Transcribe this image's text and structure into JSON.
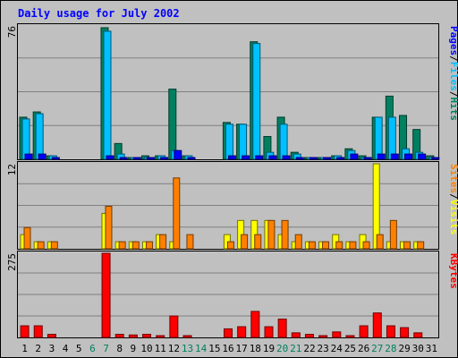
{
  "chart_data": {
    "type": "bar",
    "title": "Daily usage for July 2002",
    "x": [
      1,
      2,
      3,
      4,
      5,
      6,
      7,
      8,
      9,
      10,
      11,
      12,
      13,
      14,
      15,
      16,
      17,
      18,
      19,
      20,
      21,
      22,
      23,
      24,
      25,
      26,
      27,
      28,
      29,
      30,
      31
    ],
    "weekend_days": [
      6,
      7,
      13,
      14,
      20,
      21,
      27,
      28
    ],
    "panels": [
      {
        "ymax_label": "76",
        "ylim": [
          0,
          76
        ],
        "legend": [
          "Pages",
          "/",
          "Files",
          "/",
          "Hits"
        ],
        "series": [
          {
            "name": "Hits",
            "color": "#008060",
            "values": [
              24,
              27,
              2,
              0,
              0,
              0,
              75,
              9,
              1,
              2,
              2,
              40,
              2,
              0,
              0,
              21,
              20,
              67,
              13,
              24,
              4,
              1,
              1,
              2,
              6,
              2,
              24,
              36,
              25,
              17,
              2
            ]
          },
          {
            "name": "Files",
            "color": "#00c0ff",
            "values": [
              23,
              26,
              2,
              0,
              0,
              0,
              73,
              3,
              1,
              1,
              2,
              5,
              2,
              0,
              0,
              20,
              20,
              66,
              4,
              20,
              3,
              1,
              1,
              2,
              5,
              1,
              24,
              24,
              6,
              4,
              1
            ]
          },
          {
            "name": "Pages",
            "color": "#0000ff",
            "values": [
              3,
              3,
              1,
              0,
              0,
              0,
              2,
              1,
              1,
              1,
              1,
              5,
              1,
              0,
              0,
              2,
              2,
              2,
              2,
              2,
              1,
              1,
              1,
              1,
              3,
              1,
              3,
              3,
              3,
              3,
              1
            ]
          }
        ]
      },
      {
        "ymax_label": "12",
        "ylim": [
          0,
          12
        ],
        "legend": [
          "Sites",
          "/",
          "Visits"
        ],
        "series": [
          {
            "name": "Visits",
            "color": "#ffff00",
            "values": [
              2,
              1,
              1,
              0,
              0,
              0,
              5,
              1,
              1,
              1,
              2,
              1,
              0,
              0,
              0,
              2,
              4,
              4,
              4,
              2,
              1,
              1,
              1,
              2,
              1,
              2,
              12,
              1,
              1,
              1,
              0
            ]
          },
          {
            "name": "Sites",
            "color": "#ff8000",
            "values": [
              3,
              1,
              1,
              0,
              0,
              0,
              6,
              1,
              1,
              1,
              2,
              10,
              2,
              0,
              0,
              1,
              2,
              2,
              4,
              4,
              2,
              1,
              1,
              1,
              1,
              1,
              2,
              4,
              1,
              1,
              0
            ]
          }
        ]
      },
      {
        "ymax_label": "275",
        "ylim": [
          0,
          275
        ],
        "legend": [
          "KBytes"
        ],
        "series": [
          {
            "name": "KBytes",
            "color": "#ff0000",
            "values": [
              38,
              38,
              10,
              0,
              0,
              0,
              275,
              10,
              8,
              10,
              5,
              70,
              5,
              0,
              0,
              28,
              35,
              85,
              35,
              60,
              15,
              10,
              5,
              18,
              5,
              38,
              80,
              38,
              32,
              15,
              0
            ]
          }
        ]
      }
    ],
    "colors": {
      "background": "#c0c0c0",
      "grid": "#808080",
      "title": "#0000ff",
      "axis_text": "#000000",
      "weekend_text": "#00805c",
      "legend_sep": "#000000"
    }
  }
}
